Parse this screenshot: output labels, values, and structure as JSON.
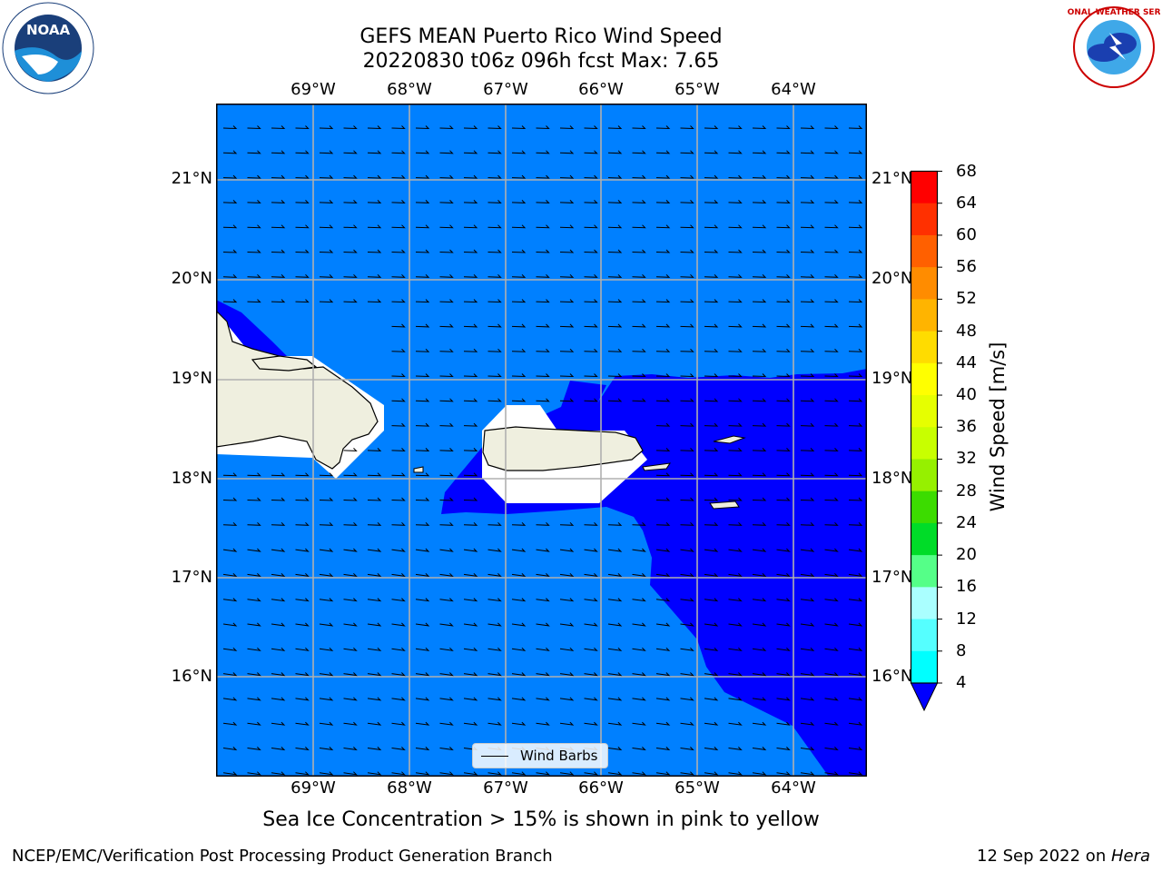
{
  "title_line1": "GEFS MEAN Puerto Rico Wind Speed",
  "title_line2": "20220830 t06z 096h fcst   Max: 7.65",
  "longitude_labels": [
    "69°W",
    "68°W",
    "67°W",
    "66°W",
    "65°W",
    "64°W"
  ],
  "latitude_labels": [
    "21°N",
    "20°N",
    "19°N",
    "18°N",
    "17°N",
    "16°N"
  ],
  "legend_label": "Wind Barbs",
  "colorbar": {
    "label": "Wind Speed [m/s]",
    "ticks": [
      "68",
      "64",
      "60",
      "56",
      "52",
      "48",
      "44",
      "40",
      "36",
      "32",
      "28",
      "24",
      "20",
      "16",
      "12",
      "8",
      "4"
    ],
    "colors": [
      "#ff0000",
      "#ff3000",
      "#ff6000",
      "#ff8c00",
      "#ffb400",
      "#ffdc00",
      "#ffff00",
      "#e6ff00",
      "#c8ff00",
      "#96f000",
      "#3cdc00",
      "#00dc28",
      "#55ff88",
      "#aaffff",
      "#55ffff",
      "#00ffff",
      "#0080ff"
    ],
    "under_color": "#0000ff"
  },
  "map_colors": {
    "ocean_base": "#0080ff",
    "low_wind": "#0000ff",
    "land": "#efefdf",
    "missing": "#ffffff"
  },
  "caption": "Sea Ice Concentration > 15% is shown in pink to yellow",
  "footer_left": "NCEP/EMC/Verification Post Processing Product Generation Branch",
  "footer_right_date": "12 Sep 2022 on ",
  "footer_right_machine": "Hera",
  "logos": {
    "noaa_text": "NOAA",
    "nws_text": "NATIONAL WEATHER SERVICE"
  }
}
